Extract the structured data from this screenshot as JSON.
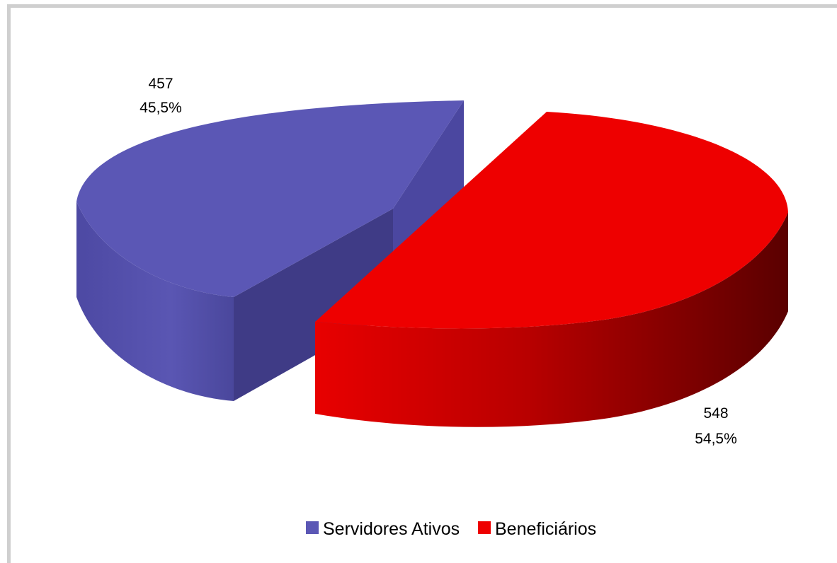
{
  "chart_data": {
    "type": "pie",
    "style": "3d-exploded",
    "categories": [
      "Servidores Ativos",
      "Beneficiários"
    ],
    "values": [
      457,
      548
    ],
    "percent_labels": [
      "45,5%",
      "54,5%"
    ],
    "value_labels": [
      "457",
      "548"
    ],
    "colors": [
      "#5b57b5",
      "#ee0000"
    ],
    "legend_position": "bottom"
  }
}
